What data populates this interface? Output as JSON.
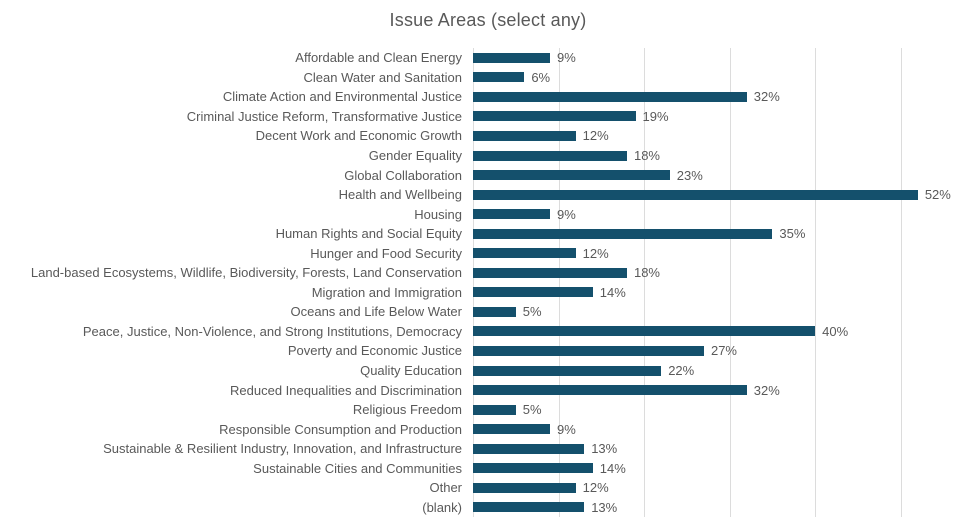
{
  "chart_data": {
    "type": "bar",
    "orientation": "horizontal",
    "title": "Issue Areas (select any)",
    "xlabel": "",
    "ylabel": "",
    "xlim": [
      0,
      58.8
    ],
    "grid": true,
    "gridline_percents": [
      0,
      10,
      20,
      30,
      40,
      50
    ],
    "colors": {
      "bar": "#14506c",
      "gridline": "#dcdcdc",
      "text": "#595959",
      "background": "#ffffff"
    },
    "categories": [
      "Affordable and Clean Energy",
      "Clean Water and Sanitation",
      "Climate Action and Environmental Justice",
      "Criminal Justice Reform, Transformative Justice",
      "Decent Work and Economic Growth",
      "Gender Equality",
      "Global Collaboration",
      "Health and Wellbeing",
      "Housing",
      "Human Rights and Social Equity",
      "Hunger and Food Security",
      "Land-based Ecosystems, Wildlife, Biodiversity, Forests, Land Conservation",
      "Migration and Immigration",
      "Oceans and Life Below Water",
      "Peace, Justice, Non-Violence, and Strong Institutions, Democracy",
      "Poverty and Economic Justice",
      "Quality Education",
      "Reduced Inequalities and Discrimination",
      "Religious Freedom",
      "Responsible Consumption and Production",
      "Sustainable & Resilient Industry, Innovation, and Infrastructure",
      "Sustainable Cities and Communities",
      "Other",
      "(blank)"
    ],
    "values": [
      9,
      6,
      32,
      19,
      12,
      18,
      23,
      52,
      9,
      35,
      12,
      18,
      14,
      5,
      40,
      27,
      22,
      32,
      5,
      9,
      13,
      14,
      12,
      13
    ],
    "value_labels": [
      "9%",
      "6%",
      "32%",
      "19%",
      "12%",
      "18%",
      "23%",
      "52%",
      "9%",
      "35%",
      "12%",
      "18%",
      "14%",
      "5%",
      "40%",
      "27%",
      "22%",
      "32%",
      "5%",
      "9%",
      "13%",
      "14%",
      "12%",
      "13%"
    ]
  }
}
